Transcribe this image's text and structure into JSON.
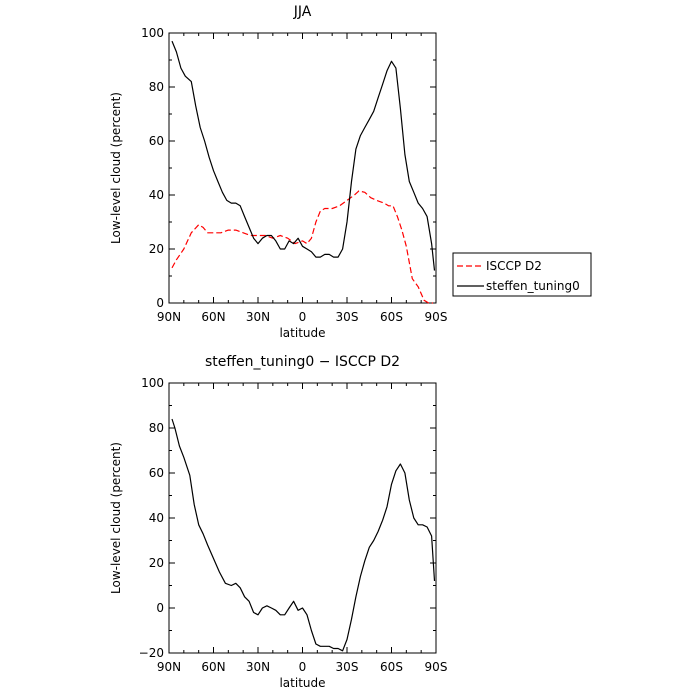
{
  "chart_data": [
    {
      "type": "line",
      "title": "JJA",
      "xlabel": "latitude",
      "ylabel": "Low-level cloud (percent)",
      "xlim": [
        90,
        -90
      ],
      "ylim": [
        0,
        100
      ],
      "xticks": [
        90,
        60,
        30,
        0,
        -30,
        -60,
        -90
      ],
      "xtick_labels": [
        "90N",
        "60N",
        "30N",
        "0",
        "30S",
        "60S",
        "90S"
      ],
      "yticks": [
        0,
        20,
        40,
        60,
        80,
        100
      ],
      "ytick_labels": [
        "0",
        "20",
        "40",
        "60",
        "80",
        "100"
      ],
      "grid": false,
      "legend_position": "right",
      "series": [
        {
          "name": "ISCCP D2",
          "color": "#ff0000",
          "style": "dashed",
          "x": [
            88,
            85,
            80,
            75,
            70,
            67,
            64,
            60,
            55,
            50,
            45,
            40,
            35,
            30,
            25,
            20,
            15,
            10,
            5,
            0,
            -3,
            -6,
            -9,
            -12,
            -15,
            -20,
            -25,
            -30,
            -35,
            -38,
            -42,
            -46,
            -50,
            -55,
            -58,
            -61,
            -64,
            -67,
            -70,
            -74,
            -78,
            -82,
            -85,
            -88
          ],
          "y": [
            13,
            16,
            20,
            26,
            29,
            28,
            26,
            26,
            26,
            27,
            27,
            26,
            25,
            25,
            25,
            24,
            25,
            24,
            22,
            23,
            22,
            24,
            30,
            34,
            35,
            35,
            36,
            38,
            40,
            41.5,
            41,
            39,
            38,
            37,
            36,
            36,
            32,
            27,
            21,
            9,
            6,
            1,
            0,
            0
          ]
        },
        {
          "name": "steffen_tuning0",
          "color": "#000000",
          "style": "solid",
          "x": [
            88,
            85,
            82,
            79,
            75,
            72,
            69,
            66,
            63,
            60,
            57,
            54,
            51,
            48,
            45,
            42,
            39,
            36,
            33,
            30,
            27,
            24,
            21,
            18,
            15,
            12,
            9,
            6,
            3,
            0,
            -3,
            -6,
            -9,
            -12,
            -15,
            -18,
            -21,
            -24,
            -27,
            -30,
            -33,
            -36,
            -39,
            -42,
            -45,
            -48,
            -51,
            -54,
            -57,
            -60,
            -63,
            -66,
            -69,
            -72,
            -75,
            -78,
            -81,
            -84,
            -87,
            -89
          ],
          "y": [
            97,
            93,
            87,
            84,
            82,
            73,
            65,
            60,
            54,
            49,
            45,
            41,
            38,
            37,
            37,
            36,
            32,
            28,
            24,
            22,
            24,
            25,
            25,
            23,
            20,
            20,
            23,
            22,
            24,
            21,
            20,
            19,
            17,
            17,
            18,
            18,
            17,
            17,
            20,
            30,
            45,
            57,
            62,
            65,
            68,
            71,
            76,
            81,
            86,
            89.5,
            87,
            72,
            55,
            45,
            41,
            37,
            35,
            32,
            22,
            12
          ]
        }
      ]
    },
    {
      "type": "line",
      "title": "steffen_tuning0 − ISCCP D2",
      "xlabel": "latitude",
      "ylabel": "Low-level cloud (percent)",
      "xlim": [
        90,
        -90
      ],
      "ylim": [
        -20,
        100
      ],
      "xticks": [
        90,
        60,
        30,
        0,
        -30,
        -60,
        -90
      ],
      "xtick_labels": [
        "90N",
        "60N",
        "30N",
        "0",
        "30S",
        "60S",
        "90S"
      ],
      "yticks": [
        -20,
        0,
        20,
        40,
        60,
        80,
        100
      ],
      "ytick_labels": [
        "−20",
        "0",
        "20",
        "40",
        "60",
        "80",
        "100"
      ],
      "grid": false,
      "series": [
        {
          "color": "#000000",
          "style": "solid",
          "x": [
            88,
            86,
            83,
            80,
            76,
            73,
            70,
            67,
            64,
            60,
            56,
            52,
            48,
            45,
            42,
            39,
            36,
            33,
            30,
            27,
            24,
            21,
            18,
            15,
            12,
            9,
            6,
            3,
            0,
            -3,
            -6,
            -9,
            -12,
            -15,
            -18,
            -21,
            -24,
            -27,
            -30,
            -33,
            -36,
            -39,
            -42,
            -45,
            -48,
            -51,
            -54,
            -57,
            -60,
            -63,
            -66,
            -69,
            -72,
            -75,
            -78,
            -81,
            -84,
            -87,
            -89
          ],
          "y": [
            84,
            80,
            72,
            67,
            59,
            46,
            37,
            33,
            28,
            22,
            16,
            11,
            10,
            11,
            9,
            5,
            3,
            -2,
            -3,
            0,
            1,
            0,
            -1,
            -3,
            -3,
            0,
            3,
            -1,
            0,
            -3,
            -10,
            -16,
            -17,
            -17,
            -17,
            -18,
            -18,
            -19,
            -14,
            -5,
            5,
            14,
            21,
            27,
            30,
            34,
            39,
            45,
            55,
            61,
            64,
            60,
            48,
            40,
            37,
            37,
            36,
            32,
            12
          ]
        }
      ]
    }
  ],
  "legend": {
    "items": [
      {
        "label": "ISCCP D2",
        "color": "#ff0000",
        "style": "dashed"
      },
      {
        "label": "steffen_tuning0",
        "color": "#000000",
        "style": "solid"
      }
    ]
  }
}
